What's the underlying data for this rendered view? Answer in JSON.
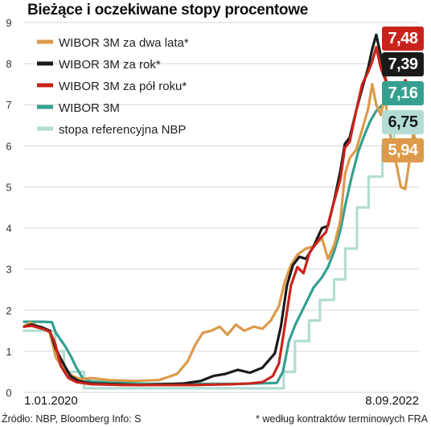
{
  "title": "Bieżące i oczekiwane stopy procentowe",
  "source": "Źródło: NBP, Bloomberg   Info: S",
  "footnote": "* według kontraktów terminowych FRA",
  "colors": {
    "wibor_2y": "#dc9a4a",
    "wibor_1y": "#1a1a1a",
    "wibor_6m": "#c8241c",
    "wibor_3m": "#35a090",
    "ref_rate": "#b3ddd3"
  },
  "chart_data": {
    "type": "line",
    "title": "Bieżące i oczekiwane stopy procentowe",
    "x_start_label": "1.01.2020",
    "x_end_label": "8.09.2022",
    "x_range": [
      "2020-01-01",
      "2022-09-08"
    ],
    "ylim": [
      0,
      9
    ],
    "y_ticks": [
      "0",
      "1",
      "2",
      "3",
      "4",
      "5",
      "6",
      "7",
      "8",
      "9"
    ],
    "grid": "horizontal",
    "legend_position": "top-left",
    "series": [
      {
        "name": "WIBOR 3M za dwa lata*",
        "color": "#dc9a4a",
        "end_label": "5,94",
        "points": [
          [
            "2020-01-01",
            1.6
          ],
          [
            "2020-01-15",
            1.7
          ],
          [
            "2020-02-01",
            1.62
          ],
          [
            "2020-02-20",
            1.55
          ],
          [
            "2020-03-05",
            1.45
          ],
          [
            "2020-03-20",
            0.85
          ],
          [
            "2020-04-10",
            0.55
          ],
          [
            "2020-05-01",
            0.4
          ],
          [
            "2020-05-20",
            0.32
          ],
          [
            "2020-06-15",
            0.35
          ],
          [
            "2020-08-01",
            0.3
          ],
          [
            "2020-10-01",
            0.28
          ],
          [
            "2020-12-01",
            0.3
          ],
          [
            "2021-01-15",
            0.45
          ],
          [
            "2021-02-10",
            0.75
          ],
          [
            "2021-03-01",
            1.15
          ],
          [
            "2021-03-20",
            1.45
          ],
          [
            "2021-04-10",
            1.5
          ],
          [
            "2021-05-01",
            1.6
          ],
          [
            "2021-05-20",
            1.4
          ],
          [
            "2021-06-10",
            1.65
          ],
          [
            "2021-07-01",
            1.5
          ],
          [
            "2021-07-25",
            1.6
          ],
          [
            "2021-08-15",
            1.55
          ],
          [
            "2021-09-05",
            1.75
          ],
          [
            "2021-09-25",
            2.1
          ],
          [
            "2021-10-10",
            2.7
          ],
          [
            "2021-10-25",
            3.1
          ],
          [
            "2021-11-10",
            3.35
          ],
          [
            "2021-12-01",
            3.5
          ],
          [
            "2021-12-20",
            3.55
          ],
          [
            "2022-01-10",
            3.75
          ],
          [
            "2022-01-25",
            3.25
          ],
          [
            "2022-02-10",
            3.6
          ],
          [
            "2022-02-25",
            4.2
          ],
          [
            "2022-03-08",
            5.3
          ],
          [
            "2022-03-20",
            5.7
          ],
          [
            "2022-04-05",
            5.9
          ],
          [
            "2022-04-20",
            6.4
          ],
          [
            "2022-05-05",
            6.9
          ],
          [
            "2022-05-15",
            7.5
          ],
          [
            "2022-05-25",
            7.0
          ],
          [
            "2022-06-05",
            6.75
          ],
          [
            "2022-06-15",
            7.2
          ],
          [
            "2022-06-25",
            6.5
          ],
          [
            "2022-07-05",
            5.9
          ],
          [
            "2022-07-15",
            5.5
          ],
          [
            "2022-07-25",
            5.0
          ],
          [
            "2022-08-05",
            4.95
          ],
          [
            "2022-08-15",
            5.6
          ],
          [
            "2022-08-25",
            6.3
          ],
          [
            "2022-09-08",
            5.94
          ]
        ]
      },
      {
        "name": "WIBOR 3M za rok*",
        "color": "#1a1a1a",
        "end_label": "7,39",
        "points": [
          [
            "2020-01-01",
            1.6
          ],
          [
            "2020-01-20",
            1.65
          ],
          [
            "2020-02-15",
            1.58
          ],
          [
            "2020-03-05",
            1.5
          ],
          [
            "2020-03-20",
            1.05
          ],
          [
            "2020-04-05",
            0.75
          ],
          [
            "2020-04-25",
            0.4
          ],
          [
            "2020-05-15",
            0.28
          ],
          [
            "2020-06-15",
            0.22
          ],
          [
            "2020-08-15",
            0.2
          ],
          [
            "2020-10-15",
            0.18
          ],
          [
            "2020-12-15",
            0.2
          ],
          [
            "2021-02-01",
            0.22
          ],
          [
            "2021-03-15",
            0.28
          ],
          [
            "2021-04-15",
            0.4
          ],
          [
            "2021-05-15",
            0.45
          ],
          [
            "2021-06-15",
            0.55
          ],
          [
            "2021-07-15",
            0.48
          ],
          [
            "2021-08-15",
            0.6
          ],
          [
            "2021-09-15",
            0.95
          ],
          [
            "2021-09-30",
            1.6
          ],
          [
            "2021-10-15",
            2.6
          ],
          [
            "2021-10-30",
            3.1
          ],
          [
            "2021-11-15",
            3.3
          ],
          [
            "2021-12-01",
            3.25
          ],
          [
            "2021-12-20",
            3.55
          ],
          [
            "2022-01-10",
            4.0
          ],
          [
            "2022-01-25",
            4.05
          ],
          [
            "2022-02-10",
            4.7
          ],
          [
            "2022-02-25",
            5.4
          ],
          [
            "2022-03-08",
            6.05
          ],
          [
            "2022-03-20",
            6.2
          ],
          [
            "2022-04-05",
            6.85
          ],
          [
            "2022-04-20",
            7.4
          ],
          [
            "2022-05-05",
            7.9
          ],
          [
            "2022-05-15",
            8.35
          ],
          [
            "2022-05-25",
            8.7
          ],
          [
            "2022-06-05",
            8.2
          ],
          [
            "2022-06-15",
            7.7
          ],
          [
            "2022-06-25",
            7.35
          ],
          [
            "2022-07-05",
            7.1
          ],
          [
            "2022-07-15",
            7.5
          ],
          [
            "2022-07-25",
            7.2
          ],
          [
            "2022-08-05",
            7.55
          ],
          [
            "2022-08-20",
            7.3
          ],
          [
            "2022-09-08",
            7.39
          ]
        ]
      },
      {
        "name": "WIBOR 3M za pół roku*",
        "color": "#c8241c",
        "end_label": "7,48",
        "points": [
          [
            "2020-01-01",
            1.6
          ],
          [
            "2020-01-20",
            1.62
          ],
          [
            "2020-02-15",
            1.55
          ],
          [
            "2020-03-05",
            1.48
          ],
          [
            "2020-03-18",
            1.2
          ],
          [
            "2020-04-01",
            0.65
          ],
          [
            "2020-04-20",
            0.35
          ],
          [
            "2020-05-10",
            0.25
          ],
          [
            "2020-06-15",
            0.2
          ],
          [
            "2020-09-01",
            0.18
          ],
          [
            "2020-12-01",
            0.18
          ],
          [
            "2021-03-01",
            0.18
          ],
          [
            "2021-06-01",
            0.2
          ],
          [
            "2021-07-15",
            0.22
          ],
          [
            "2021-08-15",
            0.25
          ],
          [
            "2021-09-10",
            0.4
          ],
          [
            "2021-09-25",
            0.7
          ],
          [
            "2021-10-08",
            1.5
          ],
          [
            "2021-10-25",
            2.6
          ],
          [
            "2021-11-10",
            3.05
          ],
          [
            "2021-11-25",
            2.9
          ],
          [
            "2021-12-10",
            3.4
          ],
          [
            "2022-01-01",
            3.7
          ],
          [
            "2022-01-20",
            3.9
          ],
          [
            "2022-02-08",
            4.6
          ],
          [
            "2022-02-25",
            5.2
          ],
          [
            "2022-03-08",
            5.95
          ],
          [
            "2022-03-20",
            6.1
          ],
          [
            "2022-04-05",
            6.85
          ],
          [
            "2022-04-20",
            7.5
          ],
          [
            "2022-05-05",
            7.8
          ],
          [
            "2022-05-15",
            8.05
          ],
          [
            "2022-05-25",
            8.4
          ],
          [
            "2022-06-05",
            7.9
          ],
          [
            "2022-06-15",
            7.65
          ],
          [
            "2022-06-25",
            7.4
          ],
          [
            "2022-07-05",
            7.15
          ],
          [
            "2022-07-15",
            7.55
          ],
          [
            "2022-07-25",
            7.25
          ],
          [
            "2022-08-05",
            7.6
          ],
          [
            "2022-08-20",
            7.35
          ],
          [
            "2022-09-08",
            7.48
          ]
        ]
      },
      {
        "name": "WIBOR 3M",
        "color": "#35a090",
        "end_label": "7,16",
        "points": [
          [
            "2020-01-01",
            1.72
          ],
          [
            "2020-02-15",
            1.72
          ],
          [
            "2020-03-10",
            1.71
          ],
          [
            "2020-03-20",
            1.45
          ],
          [
            "2020-04-10",
            1.15
          ],
          [
            "2020-04-25",
            0.9
          ],
          [
            "2020-05-10",
            0.6
          ],
          [
            "2020-05-25",
            0.35
          ],
          [
            "2020-06-15",
            0.27
          ],
          [
            "2020-08-01",
            0.24
          ],
          [
            "2020-11-01",
            0.21
          ],
          [
            "2021-03-01",
            0.21
          ],
          [
            "2021-07-01",
            0.21
          ],
          [
            "2021-09-20",
            0.23
          ],
          [
            "2021-10-05",
            0.5
          ],
          [
            "2021-10-20",
            1.25
          ],
          [
            "2021-11-05",
            1.65
          ],
          [
            "2021-11-20",
            1.95
          ],
          [
            "2021-12-05",
            2.25
          ],
          [
            "2021-12-20",
            2.55
          ],
          [
            "2022-01-10",
            2.8
          ],
          [
            "2022-01-25",
            3.05
          ],
          [
            "2022-02-10",
            3.45
          ],
          [
            "2022-02-25",
            3.95
          ],
          [
            "2022-03-10",
            4.6
          ],
          [
            "2022-03-25",
            5.25
          ],
          [
            "2022-04-10",
            5.85
          ],
          [
            "2022-04-25",
            6.25
          ],
          [
            "2022-05-10",
            6.6
          ],
          [
            "2022-05-25",
            6.85
          ],
          [
            "2022-06-10",
            7.0
          ],
          [
            "2022-06-25",
            7.05
          ],
          [
            "2022-07-10",
            7.05
          ],
          [
            "2022-07-25",
            7.05
          ],
          [
            "2022-08-10",
            7.1
          ],
          [
            "2022-08-25",
            7.15
          ],
          [
            "2022-09-08",
            7.16
          ]
        ]
      },
      {
        "name": "stopa referencyjna NBP",
        "color": "#b3ddd3",
        "end_label": "6,75",
        "step": true,
        "points": [
          [
            "2020-01-01",
            1.5
          ],
          [
            "2020-03-18",
            1.0
          ],
          [
            "2020-04-09",
            0.5
          ],
          [
            "2020-05-29",
            0.1
          ],
          [
            "2021-10-07",
            0.5
          ],
          [
            "2021-11-04",
            1.25
          ],
          [
            "2021-12-09",
            1.75
          ],
          [
            "2022-01-05",
            2.25
          ],
          [
            "2022-02-09",
            2.75
          ],
          [
            "2022-03-09",
            3.5
          ],
          [
            "2022-04-07",
            4.5
          ],
          [
            "2022-05-06",
            5.25
          ],
          [
            "2022-06-09",
            6.0
          ],
          [
            "2022-07-08",
            6.5
          ],
          [
            "2022-09-08",
            6.75
          ]
        ]
      }
    ]
  }
}
